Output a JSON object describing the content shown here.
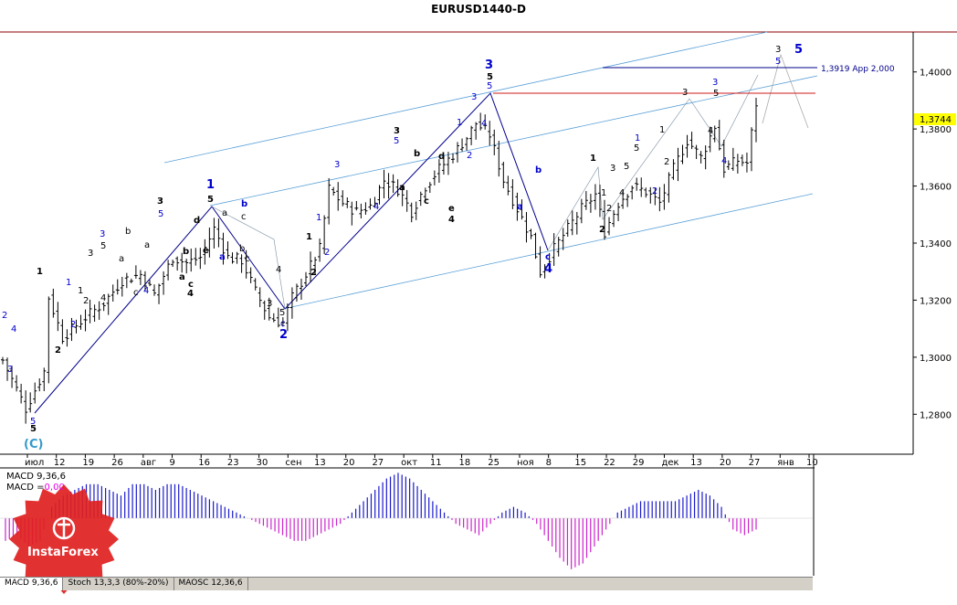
{
  "title": "EURUSD1440-D",
  "chart_data": {
    "type": "candlestick",
    "symbol": "EURUSD",
    "timeframe": "D",
    "ylim": [
      1.266,
      1.414
    ],
    "y_ticks": [
      "1,4000",
      "1,3800",
      "1,3600",
      "1,3400",
      "1,3200",
      "1,3000",
      "1,2800"
    ],
    "x_ticks": [
      "июл",
      "12",
      "19",
      "26",
      "авг",
      "9",
      "16",
      "23",
      "30",
      "сен",
      "13",
      "20",
      "27",
      "окт",
      "11",
      "18",
      "25",
      "ноя",
      "8",
      "15",
      "22",
      "29",
      "дек",
      "13",
      "20",
      "27",
      "янв",
      "10"
    ],
    "current_price_label": "1,3744",
    "target_line_label": "1,3919 App 2,000",
    "target_level": 1.3919,
    "resistance_level": 1.383,
    "price_path": [
      [
        0,
        1.299
      ],
      [
        5,
        1.282
      ],
      [
        9,
        1.295
      ],
      [
        10,
        1.321
      ],
      [
        13,
        1.307
      ],
      [
        18,
        1.314
      ],
      [
        22,
        1.319
      ],
      [
        26,
        1.327
      ],
      [
        30,
        1.329
      ],
      [
        33,
        1.322
      ],
      [
        37,
        1.335
      ],
      [
        40,
        1.333
      ],
      [
        43,
        1.335
      ],
      [
        46,
        1.345
      ],
      [
        49,
        1.335
      ],
      [
        52,
        1.334
      ],
      [
        55,
        1.323
      ],
      [
        58,
        1.314
      ],
      [
        61,
        1.312
      ],
      [
        63,
        1.321
      ],
      [
        66,
        1.329
      ],
      [
        69,
        1.338
      ],
      [
        71,
        1.359
      ],
      [
        74,
        1.354
      ],
      [
        77,
        1.351
      ],
      [
        80,
        1.353
      ],
      [
        83,
        1.362
      ],
      [
        86,
        1.359
      ],
      [
        89,
        1.351
      ],
      [
        92,
        1.36
      ],
      [
        95,
        1.366
      ],
      [
        98,
        1.371
      ],
      [
        101,
        1.377
      ],
      [
        103,
        1.382
      ],
      [
        106,
        1.378
      ],
      [
        109,
        1.362
      ],
      [
        112,
        1.352
      ],
      [
        115,
        1.342
      ],
      [
        117,
        1.33
      ],
      [
        120,
        1.338
      ],
      [
        123,
        1.345
      ],
      [
        126,
        1.352
      ],
      [
        129,
        1.357
      ],
      [
        131,
        1.344
      ],
      [
        134,
        1.354
      ],
      [
        137,
        1.36
      ],
      [
        140,
        1.358
      ],
      [
        143,
        1.354
      ],
      [
        146,
        1.366
      ],
      [
        149,
        1.376
      ],
      [
        152,
        1.37
      ],
      [
        155,
        1.381
      ],
      [
        157,
        1.366
      ],
      [
        160,
        1.369
      ],
      [
        162,
        1.368
      ],
      [
        164,
        1.389
      ]
    ],
    "wave_labels": {
      "black": [
        "1",
        "2",
        "3",
        "4",
        "5",
        "a",
        "b",
        "c",
        "d",
        "e"
      ],
      "blue": [
        "1",
        "2",
        "3",
        "4",
        "5",
        "a",
        "b",
        "c"
      ],
      "blue_bold": [
        "(C)",
        "1",
        "2",
        "3",
        "4",
        "5",
        "c"
      ]
    },
    "indicator": {
      "name": "MACD 9,36,6",
      "macd_label": "MACD",
      "macd_value": "0,00",
      "series": [
        -0.004,
        -0.003,
        -0.005,
        -0.004,
        0.002,
        0.004,
        0.005,
        0.006,
        0.006,
        0.005,
        0.004,
        0.006,
        0.006,
        0.005,
        0.006,
        0.006,
        0.005,
        0.004,
        0.003,
        0.002,
        0.001,
        0.0,
        -0.001,
        -0.002,
        -0.003,
        -0.004,
        -0.004,
        -0.003,
        -0.002,
        -0.001,
        0.001,
        0.003,
        0.005,
        0.007,
        0.008,
        0.007,
        0.005,
        0.003,
        0.001,
        -0.001,
        -0.002,
        -0.003,
        -0.001,
        0.001,
        0.002,
        0.001,
        -0.001,
        -0.004,
        -0.007,
        -0.009,
        -0.008,
        -0.005,
        -0.002,
        0.001,
        0.002,
        0.003,
        0.003,
        0.003,
        0.003,
        0.004,
        0.005,
        0.004,
        0.002,
        -0.002,
        -0.003,
        -0.002
      ]
    },
    "indicator_tabs": [
      "MACD 9,36,6",
      "Stoch 13,3,3 (80%-20%)",
      "MAOSC 12,36,6"
    ],
    "watermark": "InstaForex"
  }
}
